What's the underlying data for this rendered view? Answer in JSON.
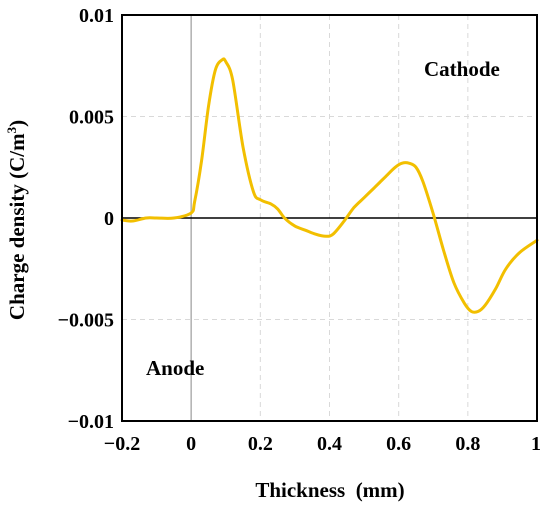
{
  "chart_data": {
    "type": "line",
    "xlabel": "Thickness  (mm)",
    "ylabel_main": "Charge density (C/m",
    "ylabel_sup": "3",
    "ylabel_close": ")",
    "xlim": [
      -0.2,
      1
    ],
    "ylim": [
      -0.01,
      0.01
    ],
    "x_ticks": [
      -0.2,
      0,
      0.2,
      0.4,
      0.6,
      0.8,
      1
    ],
    "x_tick_labels": [
      "−0.2",
      "0",
      "0.2",
      "0.4",
      "0.6",
      "0.8",
      "1"
    ],
    "y_ticks": [
      0.01,
      0.005,
      0,
      -0.005,
      -0.01
    ],
    "y_tick_labels": [
      "0.01",
      "0.005",
      "0",
      "−0.005",
      "−0.01"
    ],
    "grid": true,
    "series_color": "#f2bf00",
    "annotations": [
      {
        "text": "Cathode"
      },
      {
        "text": "Anode"
      }
    ],
    "series": [
      {
        "x": [
          -0.2,
          -0.17,
          -0.13,
          -0.1,
          -0.05,
          0,
          0.01,
          0.03,
          0.05,
          0.07,
          0.09,
          0.1,
          0.12,
          0.15,
          0.18,
          0.2,
          0.23,
          0.25,
          0.27,
          0.3,
          0.33,
          0.36,
          0.39,
          0.41,
          0.44,
          0.47,
          0.5,
          0.53,
          0.56,
          0.59,
          0.61,
          0.63,
          0.65,
          0.67,
          0.7,
          0.73,
          0.76,
          0.79,
          0.81,
          0.83,
          0.85,
          0.88,
          0.91,
          0.95,
          1.0
        ],
        "values": [
          -0.0001,
          -0.00015,
          0.0,
          0.0,
          0.0,
          0.00025,
          0.0008,
          0.0028,
          0.0055,
          0.0073,
          0.0078,
          0.0077,
          0.0068,
          0.0035,
          0.0013,
          0.0009,
          0.0007,
          0.00045,
          0.0,
          -0.0004,
          -0.0006,
          -0.0008,
          -0.0009,
          -0.0008,
          -0.0002,
          0.0005,
          0.001,
          0.0015,
          0.002,
          0.0025,
          0.0027,
          0.0027,
          0.0025,
          0.0018,
          0.0002,
          -0.0016,
          -0.0032,
          -0.0042,
          -0.0046,
          -0.0046,
          -0.0043,
          -0.0035,
          -0.0025,
          -0.0017,
          -0.0011
        ]
      }
    ]
  }
}
